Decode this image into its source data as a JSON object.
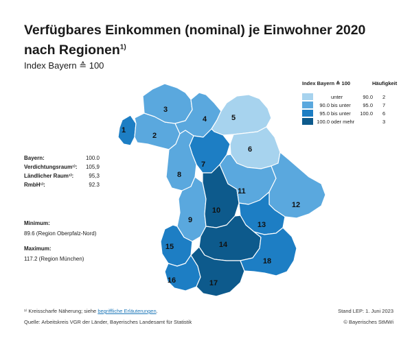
{
  "header": {
    "title": "Verfügbares Einkommen (nominal) je Einwohner 2020 nach Regionen",
    "title_footnote": "1)",
    "subtitle": "Index Bayern ≙ 100"
  },
  "legend": {
    "heading": "Index Bayern ≙ 100",
    "count_heading": "Häufigkeit",
    "classes": [
      {
        "from": "",
        "connector": "unter",
        "to": "90.0",
        "count": "2",
        "color": "#a7d3ee"
      },
      {
        "from": "90.0",
        "connector": "bis unter",
        "to": "95.0",
        "count": "7",
        "color": "#5aa8de"
      },
      {
        "from": "95.0",
        "connector": "bis unter",
        "to": "100.0",
        "count": "6",
        "color": "#1d7ec4"
      },
      {
        "from": "100.0",
        "connector": "oder mehr",
        "to": "",
        "count": "3",
        "color": "#0d5a8c"
      }
    ]
  },
  "stats": [
    {
      "label": "Bayern:",
      "value": "100.0"
    },
    {
      "label": "Verdichtungsraum¹⁾:",
      "value": "105,9"
    },
    {
      "label": "Ländlicher Raum¹⁾:",
      "value": "95,3"
    },
    {
      "label": "RmbH¹⁾:",
      "value": "92.3"
    }
  ],
  "minimum": {
    "label": "Minimum:",
    "value": "89.6  (Region Oberpfalz-Nord)"
  },
  "maximum": {
    "label": "Maximum:",
    "value": "117.2  (Region München)"
  },
  "regions": [
    {
      "id": "1",
      "class": 2
    },
    {
      "id": "2",
      "class": 1
    },
    {
      "id": "3",
      "class": 1
    },
    {
      "id": "4",
      "class": 1
    },
    {
      "id": "5",
      "class": 0
    },
    {
      "id": "6",
      "class": 0
    },
    {
      "id": "7",
      "class": 2
    },
    {
      "id": "8",
      "class": 1
    },
    {
      "id": "9",
      "class": 1
    },
    {
      "id": "10",
      "class": 3
    },
    {
      "id": "11",
      "class": 1
    },
    {
      "id": "12",
      "class": 1
    },
    {
      "id": "13",
      "class": 2
    },
    {
      "id": "14",
      "class": 3
    },
    {
      "id": "15",
      "class": 2
    },
    {
      "id": "16",
      "class": 2
    },
    {
      "id": "17",
      "class": 3
    },
    {
      "id": "18",
      "class": 2
    }
  ],
  "footer": {
    "footnote_prefix": "¹⁾ Kreisscharfe Näherung; siehe ",
    "footnote_link": "begriffliche Erläuterungen",
    "footnote_suffix": ".",
    "source": "Quelle: Arbeitskreis VGR der Länder, Bayerisches Landesamt für Statistik",
    "status": "Stand LEP: 1. Juni 2023",
    "copyright": "© Bayerisches StMWi"
  }
}
